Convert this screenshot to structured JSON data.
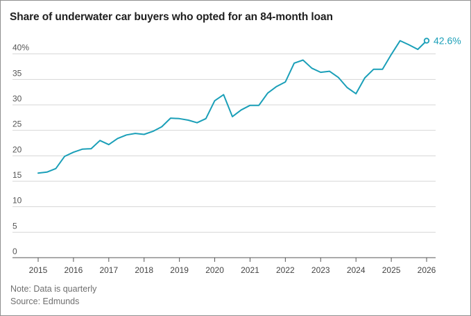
{
  "chart_data": {
    "type": "line",
    "title": "Share of underwater car buyers who opted for an 84-month loan",
    "xlabel": "",
    "ylabel": "",
    "ylim": [
      0,
      45
    ],
    "yticks": [
      "0",
      "5",
      "10",
      "15",
      "20",
      "25",
      "30",
      "35",
      "40%"
    ],
    "ytick_values": [
      0,
      5,
      10,
      15,
      20,
      25,
      30,
      35,
      40
    ],
    "xticks": [
      "2015",
      "2016",
      "2017",
      "2018",
      "2019",
      "2020",
      "2021",
      "2022",
      "2023",
      "2024",
      "2025",
      "2026"
    ],
    "xtick_values": [
      2015,
      2016,
      2017,
      2018,
      2019,
      2020,
      2021,
      2022,
      2023,
      2024,
      2025,
      2026
    ],
    "xlim": [
      2014.8,
      2026.2
    ],
    "grid": "horizontal",
    "color": "#1a9fb8",
    "series": [
      {
        "values": [
          [
            2015.0,
            16.6
          ],
          [
            2015.25,
            16.8
          ],
          [
            2015.5,
            17.5
          ],
          [
            2015.75,
            19.9
          ],
          [
            2016.0,
            20.7
          ],
          [
            2016.25,
            21.3
          ],
          [
            2016.5,
            21.4
          ],
          [
            2016.75,
            23.0
          ],
          [
            2017.0,
            22.2
          ],
          [
            2017.25,
            23.4
          ],
          [
            2017.5,
            24.1
          ],
          [
            2017.75,
            24.4
          ],
          [
            2018.0,
            24.2
          ],
          [
            2018.25,
            24.8
          ],
          [
            2018.5,
            25.7
          ],
          [
            2018.75,
            27.4
          ],
          [
            2019.0,
            27.3
          ],
          [
            2019.25,
            27.0
          ],
          [
            2019.5,
            26.5
          ],
          [
            2019.75,
            27.3
          ],
          [
            2020.0,
            30.8
          ],
          [
            2020.25,
            32.0
          ],
          [
            2020.5,
            27.7
          ],
          [
            2020.75,
            29.0
          ],
          [
            2021.0,
            29.9
          ],
          [
            2021.25,
            29.9
          ],
          [
            2021.5,
            32.3
          ],
          [
            2021.75,
            33.6
          ],
          [
            2022.0,
            34.5
          ],
          [
            2022.25,
            38.2
          ],
          [
            2022.5,
            38.8
          ],
          [
            2022.75,
            37.2
          ],
          [
            2023.0,
            36.4
          ],
          [
            2023.25,
            36.6
          ],
          [
            2023.5,
            35.4
          ],
          [
            2023.75,
            33.4
          ],
          [
            2024.0,
            32.2
          ],
          [
            2024.25,
            35.3
          ],
          [
            2024.5,
            37.0
          ],
          [
            2024.75,
            37.0
          ],
          [
            2025.0,
            39.9
          ],
          [
            2025.25,
            42.6
          ],
          [
            2025.5,
            41.8
          ],
          [
            2025.75,
            40.9
          ],
          [
            2026.0,
            42.6
          ]
        ]
      }
    ],
    "end_label": "42.6%"
  },
  "note": "Note: Data is quarterly",
  "source": "Source: Edmunds"
}
